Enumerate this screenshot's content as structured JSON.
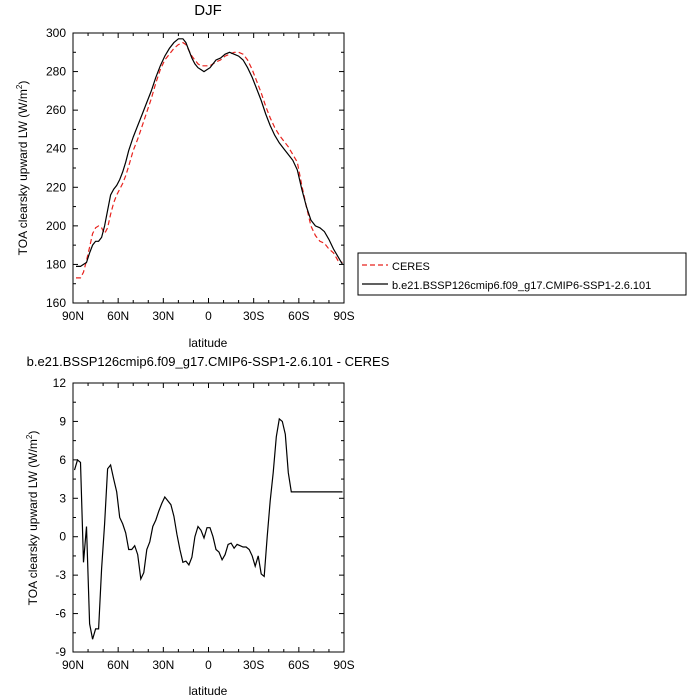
{
  "colors": {
    "ceres": "#e8231e",
    "model": "#000000",
    "axis": "#000000"
  },
  "chart_data": [
    {
      "type": "line",
      "title": "DJF",
      "xlabel": "latitude",
      "ylabel": "TOA clearsky upward LW (W/m",
      "ylabel_sup": "2",
      "ylabel_end": ")",
      "xlim": [
        90,
        -90
      ],
      "ylim": [
        160,
        300
      ],
      "xticks": [
        {
          "v": 90,
          "label": "90N"
        },
        {
          "v": 60,
          "label": "60N"
        },
        {
          "v": 30,
          "label": "30N"
        },
        {
          "v": 0,
          "label": "0"
        },
        {
          "v": -30,
          "label": "30S"
        },
        {
          "v": -60,
          "label": "60S"
        },
        {
          "v": -90,
          "label": "90S"
        }
      ],
      "yticks": [
        160,
        180,
        200,
        220,
        240,
        260,
        280,
        300
      ],
      "legend_position": "right",
      "series": [
        {
          "name": "CERES",
          "style": "dashed",
          "color": "#e8231e",
          "x": [
            88,
            85,
            83,
            81,
            79,
            77,
            75,
            73,
            71,
            69,
            67,
            65,
            63,
            61,
            59,
            57,
            55,
            53,
            50,
            47,
            44,
            41,
            38,
            35,
            32,
            29,
            26,
            23,
            20,
            17,
            15,
            13,
            11,
            9,
            7,
            5,
            3,
            1,
            -1,
            -3,
            -5,
            -8,
            -11,
            -14,
            -17,
            -20,
            -23,
            -26,
            -29,
            -32,
            -35,
            -38,
            -41,
            -44,
            -47,
            -50,
            -53,
            -56,
            -59,
            -62,
            -65,
            -68,
            -71,
            -74,
            -77,
            -80,
            -83,
            -86,
            -89
          ],
          "y": [
            173,
            173,
            176,
            182,
            189,
            196,
            199,
            200,
            199,
            196,
            199,
            206,
            212,
            216,
            219,
            222,
            226,
            231,
            239,
            245,
            252,
            259,
            266,
            274,
            281,
            286,
            289,
            292,
            294,
            295,
            294,
            291,
            288,
            286,
            284,
            283,
            283,
            283,
            283,
            284,
            285,
            286,
            288,
            289,
            290,
            290,
            289,
            286,
            281,
            275,
            269,
            262,
            256,
            251,
            247,
            244,
            241,
            237,
            233,
            221,
            210,
            200,
            195,
            192,
            191,
            188,
            186,
            182,
            181
          ]
        },
        {
          "name": "b.e21.BSSP126cmip6.f09_g17.CMIP6-SSP1-2.6.101",
          "style": "solid",
          "color": "#000000",
          "x": [
            88,
            85,
            83,
            81,
            79,
            77,
            75,
            73,
            71,
            69,
            67,
            65,
            63,
            61,
            59,
            57,
            55,
            53,
            50,
            47,
            44,
            41,
            38,
            35,
            32,
            29,
            26,
            23,
            20,
            17,
            15,
            13,
            11,
            9,
            7,
            5,
            3,
            1,
            -1,
            -3,
            -5,
            -8,
            -11,
            -14,
            -17,
            -20,
            -23,
            -26,
            -29,
            -32,
            -35,
            -38,
            -41,
            -44,
            -47,
            -50,
            -53,
            -56,
            -59,
            -62,
            -65,
            -68,
            -71,
            -74,
            -77,
            -80,
            -83,
            -86,
            -89
          ],
          "y": [
            179,
            179,
            180,
            181,
            186,
            190,
            192,
            192,
            194,
            200,
            208,
            216,
            219,
            221,
            224,
            228,
            233,
            239,
            246,
            252,
            258,
            264,
            270,
            277,
            283,
            288,
            292,
            295,
            297,
            297,
            295,
            291,
            287,
            284,
            282,
            281,
            280,
            281,
            282,
            284,
            286,
            287,
            289,
            290,
            289,
            288,
            286,
            282,
            277,
            271,
            265,
            258,
            252,
            247,
            243,
            240,
            237,
            234,
            229,
            219,
            210,
            203,
            200,
            199,
            197,
            193,
            188,
            184,
            180
          ]
        }
      ]
    },
    {
      "type": "line",
      "title": "b.e21.BSSP126cmip6.f09_g17.CMIP6-SSP1-2.6.101 - CERES",
      "xlabel": "latitude",
      "ylabel": "TOA clearsky upward LW (W/m",
      "ylabel_sup": "2",
      "ylabel_end": ")",
      "xlim": [
        90,
        -90
      ],
      "ylim": [
        -9,
        12
      ],
      "xticks": [
        {
          "v": 90,
          "label": "90N"
        },
        {
          "v": 60,
          "label": "60N"
        },
        {
          "v": 30,
          "label": "30N"
        },
        {
          "v": 0,
          "label": "0"
        },
        {
          "v": -30,
          "label": "30S"
        },
        {
          "v": -60,
          "label": "60S"
        },
        {
          "v": -90,
          "label": "90S"
        }
      ],
      "yticks": [
        -9,
        -6,
        -3,
        0,
        3,
        6,
        9,
        12
      ],
      "series": [
        {
          "name": "",
          "style": "solid",
          "color": "#000000",
          "x": [
            89,
            87,
            85,
            83,
            81,
            79,
            77,
            75,
            73,
            71,
            69,
            67,
            65,
            63,
            61,
            59,
            57,
            55,
            53,
            51,
            49,
            47,
            45,
            43,
            41,
            39,
            37,
            35,
            33,
            31,
            29,
            27,
            25,
            23,
            21,
            19,
            17,
            15,
            13,
            11,
            9,
            7,
            5,
            3,
            1,
            -1,
            -3,
            -5,
            -7,
            -9,
            -11,
            -13,
            -15,
            -17,
            -19,
            -21,
            -23,
            -25,
            -27,
            -29,
            -31,
            -33,
            -35,
            -37,
            -39,
            -41,
            -43,
            -45,
            -47,
            -49,
            -51,
            -53,
            -55,
            -57,
            -59,
            -61,
            -63,
            -65,
            -67,
            -69,
            -71,
            -73,
            -75,
            -77,
            -79,
            -81,
            -83,
            -85,
            -87,
            -89
          ],
          "y": [
            5.2,
            6.0,
            5.8,
            -2.0,
            0.8,
            -6.8,
            -8.0,
            -7.2,
            -7.2,
            -2.5,
            1.0,
            5.3,
            5.6,
            4.5,
            3.5,
            1.5,
            1.0,
            0.3,
            -1.0,
            -1.0,
            -0.7,
            -1.4,
            -3.3,
            -2.8,
            -1.0,
            -0.4,
            0.8,
            1.3,
            2.0,
            2.6,
            3.1,
            2.8,
            2.5,
            1.6,
            0.2,
            -1.0,
            -2.0,
            -1.9,
            -2.2,
            -1.6,
            0.0,
            0.8,
            0.5,
            -0.1,
            0.7,
            0.7,
            0.0,
            -1.0,
            -1.2,
            -1.8,
            -1.4,
            -0.6,
            -0.5,
            -0.9,
            -0.6,
            -0.7,
            -0.8,
            -0.8,
            -1.0,
            -1.5,
            -2.3,
            -1.5,
            -2.9,
            -3.1,
            0.0,
            2.8,
            5.0,
            7.8,
            9.2,
            9.0,
            8.0,
            5.0,
            3.5,
            3.5,
            3.5,
            3.5,
            3.5,
            3.5,
            3.5,
            3.5,
            3.5,
            3.5,
            3.5,
            3.5,
            3.5,
            3.5,
            3.5,
            3.5,
            3.5,
            3.5
          ]
        }
      ]
    }
  ]
}
